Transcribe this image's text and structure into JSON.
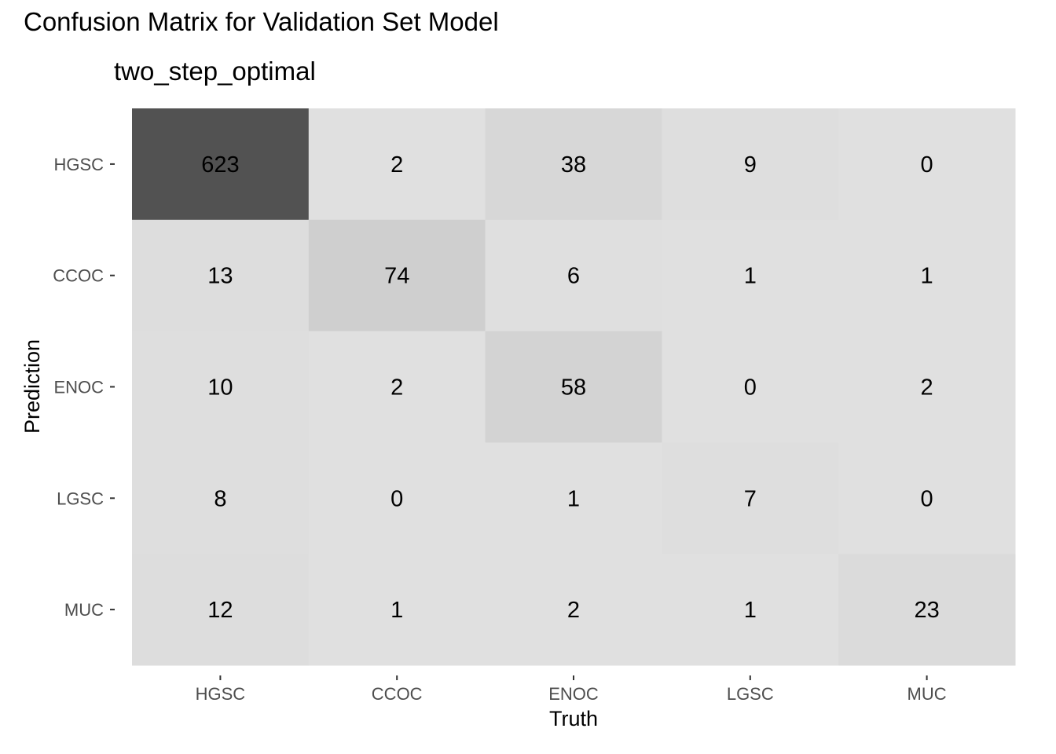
{
  "chart_data": {
    "type": "heatmap",
    "title": "Confusion Matrix for Validation Set Model",
    "subtitle": "two_step_optimal",
    "xlabel": "Truth",
    "ylabel": "Prediction",
    "x_categories": [
      "HGSC",
      "CCOC",
      "ENOC",
      "LGSC",
      "MUC"
    ],
    "y_categories": [
      "HGSC",
      "CCOC",
      "ENOC",
      "LGSC",
      "MUC"
    ],
    "values": [
      [
        623,
        2,
        38,
        9,
        0
      ],
      [
        13,
        74,
        6,
        1,
        1
      ],
      [
        10,
        2,
        58,
        0,
        2
      ],
      [
        8,
        0,
        1,
        7,
        0
      ],
      [
        12,
        1,
        2,
        1,
        23
      ]
    ],
    "color_low": "#e0e0e0",
    "color_high": "#525252",
    "panel_background": "#ebebeb",
    "grid": false,
    "legend": "none"
  }
}
